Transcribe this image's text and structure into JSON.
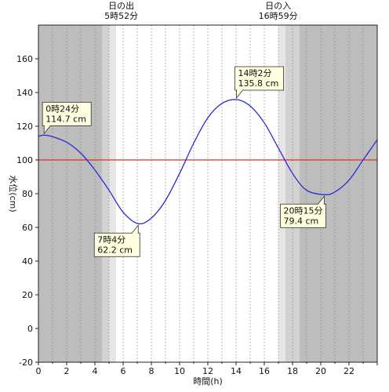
{
  "chart_data": {
    "type": "line",
    "xlabel": "時間(h)",
    "ylabel": "水位(cm)",
    "xlim": [
      0,
      24
    ],
    "ylim": [
      -20,
      180
    ],
    "x_ticks": [
      0,
      2,
      4,
      6,
      8,
      10,
      12,
      14,
      16,
      18,
      20,
      22
    ],
    "x_tick_labels": [
      "0",
      "2",
      "4",
      "6",
      "8",
      "10",
      "12",
      "14",
      "16",
      "18",
      "20",
      "22"
    ],
    "y_ticks": [
      -20,
      0,
      20,
      40,
      60,
      80,
      100,
      120,
      140,
      160
    ],
    "y_tick_labels": [
      "-20",
      "0",
      "20",
      "40",
      "60",
      "80",
      "100",
      "120",
      "140",
      "160"
    ],
    "grid": "vertical dotted every 1 hour",
    "reference_line": {
      "y": 100,
      "color": "#e03020"
    },
    "line_color": "#2a2ad8",
    "colors": {
      "night": "#bdbdbd",
      "twilight_dark": "#d2d2d2",
      "twilight_light": "#e6e6e6",
      "day": "#ffffff",
      "callout_fill": "#ffffe0"
    },
    "shading": [
      {
        "from": 0,
        "to": 4.5,
        "tone": "night"
      },
      {
        "from": 4.5,
        "to": 5.0,
        "tone": "twilight_dark"
      },
      {
        "from": 5.0,
        "to": 5.5,
        "tone": "twilight_light"
      },
      {
        "from": 17.0,
        "to": 17.5,
        "tone": "twilight_light"
      },
      {
        "from": 17.5,
        "to": 18.5,
        "tone": "twilight_dark"
      },
      {
        "from": 18.5,
        "to": 24,
        "tone": "night"
      }
    ],
    "sun_labels": [
      {
        "x": 5.87,
        "line1": "日の出",
        "line2": "5時52分"
      },
      {
        "x": 16.98,
        "line1": "日の入",
        "line2": "16時59分"
      }
    ],
    "series": [
      {
        "x": [
          0,
          0.4,
          1,
          2,
          3,
          4,
          5,
          6,
          7.07,
          8,
          9,
          10,
          11,
          12,
          13,
          14.03,
          15,
          16,
          17,
          18,
          19,
          20.25,
          21,
          22,
          23,
          24
        ],
        "y": [
          114,
          114.7,
          113.8,
          110.5,
          104,
          94,
          82,
          69,
          62.2,
          65.5,
          76,
          92,
          110,
          125,
          133.5,
          135.8,
          132,
          122,
          107,
          92,
          82,
          79.4,
          81,
          88,
          100,
          112
        ]
      }
    ],
    "annotations": [
      {
        "x": 0.4,
        "y": 114.7,
        "time": "0時24分",
        "value": "114.7 cm",
        "side": "above"
      },
      {
        "x": 7.07,
        "y": 62.2,
        "time": "7時4分",
        "value": "62.2 cm",
        "side": "below"
      },
      {
        "x": 14.03,
        "y": 135.8,
        "time": "14時2分",
        "value": "135.8 cm",
        "side": "above"
      },
      {
        "x": 20.25,
        "y": 79.4,
        "time": "20時15分",
        "value": "79.4 cm",
        "side": "below"
      }
    ]
  }
}
